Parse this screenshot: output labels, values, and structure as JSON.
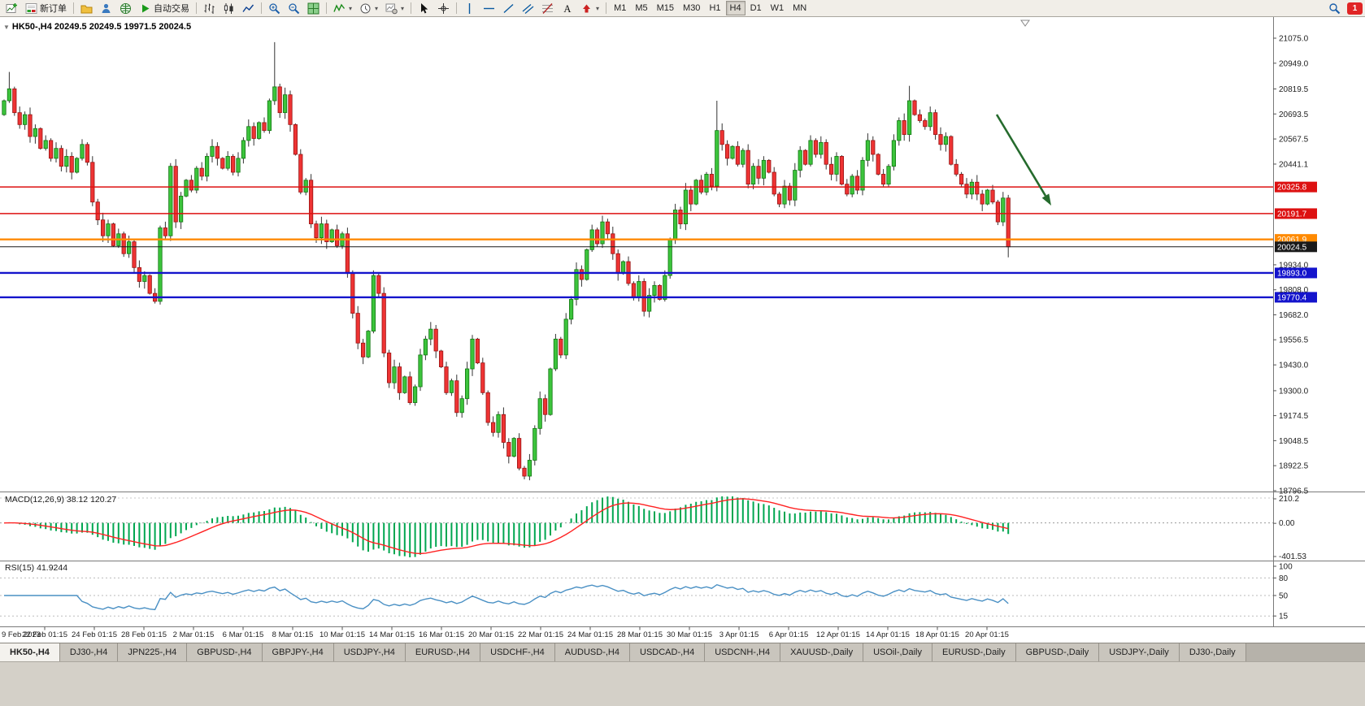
{
  "toolbar": {
    "new_order_label": "新订单",
    "auto_trading_label": "自动交易",
    "timeframes": [
      "M1",
      "M5",
      "M15",
      "M30",
      "H1",
      "H4",
      "D1",
      "W1",
      "MN"
    ],
    "active_timeframe": "H4",
    "notification_count": "1",
    "icons": [
      "new-chart-icon",
      "new-order-icon",
      "profiles-icon",
      "market-watch-icon",
      "terminal-icon",
      "autotrading-icon",
      "bars-icon",
      "candles-icon",
      "line-chart-icon",
      "zoom-in-icon",
      "zoom-out-icon",
      "tile-windows-icon",
      "indicators-icon",
      "periods-icon",
      "templates-icon",
      "cursor-icon",
      "crosshair-icon",
      "vertical-line-icon",
      "horizontal-line-icon",
      "trendline-icon",
      "channel-icon",
      "fibonacci-icon",
      "text-icon",
      "arrow-tool-icon",
      "search-icon"
    ]
  },
  "chart": {
    "title_line": "HK50-,H4 20249.5 20249.5 19971.5 20024.5"
  },
  "chart_data": {
    "type": "candlestick",
    "symbol": "HK50-,H4",
    "ohlc_display": {
      "open": "20249.5",
      "high": "20249.5",
      "low": "19971.5",
      "close": "20024.5"
    },
    "first_open": 20690,
    "closes": [
      20760,
      20820,
      20700,
      20640,
      20690,
      20580,
      20620,
      20520,
      20560,
      20470,
      20520,
      20430,
      20480,
      20400,
      20470,
      20540,
      20450,
      20250,
      20160,
      20080,
      20140,
      20030,
      20090,
      19990,
      20050,
      19920,
      19850,
      19880,
      19790,
      19750,
      20120,
      20080,
      20430,
      20150,
      20280,
      20360,
      20310,
      20420,
      20380,
      20480,
      20530,
      20470,
      20420,
      20480,
      20400,
      20470,
      20560,
      20630,
      20570,
      20650,
      20610,
      20760,
      20830,
      20700,
      20790,
      20640,
      20490,
      20300,
      20360,
      20140,
      20070,
      20140,
      20050,
      20110,
      20030,
      20090,
      19890,
      19690,
      19540,
      19470,
      19600,
      19880,
      19790,
      19490,
      19340,
      19420,
      19290,
      19370,
      19240,
      19320,
      19480,
      19560,
      19610,
      19500,
      19420,
      19290,
      19350,
      19190,
      19260,
      19410,
      19560,
      19440,
      19290,
      19140,
      19090,
      19180,
      19040,
      18970,
      19060,
      18910,
      18870,
      18950,
      19110,
      19260,
      19180,
      19410,
      19560,
      19480,
      19660,
      19760,
      19910,
      19860,
      20010,
      20110,
      20040,
      20150,
      20090,
      19990,
      19890,
      19950,
      19840,
      19770,
      19850,
      19700,
      19780,
      19830,
      19760,
      19880,
      20060,
      20210,
      20140,
      20310,
      20240,
      20360,
      20300,
      20390,
      20330,
      20610,
      20540,
      20470,
      20530,
      20440,
      20510,
      20340,
      20430,
      20370,
      20460,
      20400,
      20290,
      20240,
      20330,
      20260,
      20410,
      20510,
      20440,
      20560,
      20490,
      20550,
      20440,
      20390,
      20480,
      20340,
      20290,
      20380,
      20310,
      20460,
      20560,
      20490,
      20390,
      20340,
      20430,
      20560,
      20660,
      20590,
      20760,
      20690,
      20660,
      20630,
      20700,
      20590,
      20540,
      20580,
      20440,
      20390,
      20340,
      20290,
      20350,
      20290,
      20240,
      20310,
      20250,
      20150,
      20270,
      20024.5
    ],
    "wick_high_overrides": {
      "1": 20905,
      "52": 21055,
      "137": 20760,
      "174": 20835
    },
    "wick_low_overrides": {
      "193": 19971.5
    },
    "price_axis_ticks": [
      21075.0,
      20949.0,
      20819.5,
      20693.5,
      20567.5,
      20441.1,
      19934.0,
      19808.0,
      19682.0,
      19556.5,
      19430.0,
      19300.0,
      19174.5,
      19048.5,
      18922.5,
      18796.5
    ],
    "hlines": [
      {
        "price": 20325.8,
        "label": "20325.8",
        "color": "#dd1111",
        "width": 1.5
      },
      {
        "price": 20191.7,
        "label": "20191.7",
        "color": "#dd1111",
        "width": 1.5
      },
      {
        "price": 20061.9,
        "label": "20061.9",
        "color": "#ff8a00",
        "width": 2.4
      },
      {
        "price": 20024.5,
        "label": "20024.5",
        "color": "#1a1a1a",
        "width": 1
      },
      {
        "price": 19893.0,
        "label": "19893.0",
        "color": "#1414cc",
        "width": 2.4
      },
      {
        "price": 19770.4,
        "label": "19770.4",
        "color": "#1414cc",
        "width": 2.4
      }
    ],
    "macd": {
      "label": "MACD(12,26,9)",
      "values_text": "38.12 120.27",
      "axis": [
        "210.2",
        "0.00",
        "-401.53"
      ]
    },
    "rsi": {
      "label": "RSI(15)",
      "value_text": "41.9244",
      "axis": [
        "100",
        "80",
        "50",
        "15"
      ],
      "levels": [
        80,
        50,
        15
      ]
    },
    "time_labels": [
      "9 Feb 2023",
      "22 Feb 01:15",
      "24 Feb 01:15",
      "28 Feb 01:15",
      "2 Mar 01:15",
      "6 Mar 01:15",
      "8 Mar 01:15",
      "10 Mar 01:15",
      "14 Mar 01:15",
      "16 Mar 01:15",
      "20 Mar 01:15",
      "22 Mar 01:15",
      "24 Mar 01:15",
      "28 Mar 01:15",
      "30 Mar 01:15",
      "3 Apr 01:15",
      "6 Apr 01:15",
      "12 Apr 01:15",
      "14 Apr 01:15",
      "18 Apr 01:15",
      "20 Apr 01:15"
    ],
    "colors": {
      "bull": "#3cc43c",
      "bull_border": "#117711",
      "bear": "#ee3333",
      "bear_border": "#991414",
      "macd_hist": "#00a650",
      "macd_signal": "#ff2222",
      "rsi_line": "#4a90c4",
      "annotation_arrow": "#256b2d"
    }
  },
  "tabbar": {
    "tabs": [
      "HK50-,H4",
      "DJ30-,H4",
      "JPN225-,H4",
      "GBPUSD-,H4",
      "GBPJPY-,H4",
      "USDJPY-,H4",
      "EURUSD-,H4",
      "USDCHF-,H4",
      "AUDUSD-,H4",
      "USDCAD-,H4",
      "USDCNH-,H4",
      "XAUUSD-,Daily",
      "USOil-,Daily",
      "EURUSD-,Daily",
      "GBPUSD-,Daily",
      "USDJPY-,Daily",
      "DJ30-,Daily"
    ],
    "active_index": 0
  }
}
